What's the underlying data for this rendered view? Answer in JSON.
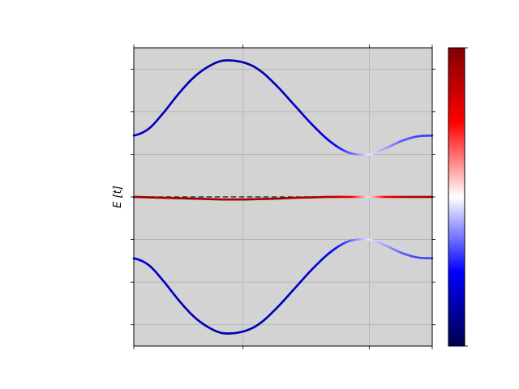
{
  "chart_data": {
    "type": "line",
    "title": "",
    "xlabel": "",
    "ylabel": "E [t]",
    "xlim": [
      0,
      1.0
    ],
    "ylim": [
      -3.5,
      3.5
    ],
    "xticks": [
      0,
      0.366,
      0.789,
      1.0
    ],
    "yticks": [
      -3,
      -2,
      -1,
      0,
      1,
      2,
      3
    ],
    "grid": true,
    "background": "#d3d3d3",
    "reference_line": {
      "y": 0.0,
      "style": "dashed",
      "color": "#333333"
    },
    "colorbar": {
      "cmap": "seismic",
      "range": [
        -1,
        1
      ],
      "colors": [
        "#00004c",
        "#0000ff",
        "#ffffff",
        "#ff0000",
        "#800000"
      ]
    },
    "series": [
      {
        "x": [
          0.0,
          0.05,
          0.1,
          0.15,
          0.2,
          0.25,
          0.3,
          0.366,
          0.42,
          0.48,
          0.54,
          0.6,
          0.66,
          0.72,
          0.789,
          0.85,
          0.9,
          0.95,
          1.0
        ],
        "y": [
          1.44,
          1.6,
          1.98,
          2.42,
          2.8,
          3.06,
          3.2,
          3.16,
          2.98,
          2.6,
          2.14,
          1.68,
          1.29,
          1.04,
          1.0,
          1.16,
          1.32,
          1.42,
          1.44
        ],
        "c": [
          -0.62,
          -0.66,
          -0.69,
          -0.71,
          -0.72,
          -0.72,
          -0.72,
          -0.72,
          -0.71,
          -0.7,
          -0.67,
          -0.63,
          -0.55,
          -0.35,
          -0.05,
          -0.2,
          -0.32,
          -0.37,
          -0.38
        ]
      },
      {
        "x": [
          0.0,
          0.05,
          0.1,
          0.15,
          0.2,
          0.25,
          0.3,
          0.366,
          0.42,
          0.48,
          0.54,
          0.6,
          0.66,
          0.72,
          0.789,
          0.85,
          0.9,
          0.95,
          1.0
        ],
        "y": [
          0.0,
          -0.01,
          -0.02,
          -0.03,
          -0.04,
          -0.05,
          -0.06,
          -0.06,
          -0.05,
          -0.04,
          -0.02,
          -0.01,
          0.0,
          0.0,
          0.0,
          0.0,
          0.0,
          0.0,
          0.0
        ],
        "c": [
          0.85,
          0.85,
          0.86,
          0.86,
          0.86,
          0.86,
          0.86,
          0.86,
          0.86,
          0.85,
          0.84,
          0.82,
          0.78,
          0.6,
          0.05,
          0.55,
          0.75,
          0.82,
          0.85
        ]
      },
      {
        "x": [
          0.0,
          0.05,
          0.1,
          0.15,
          0.2,
          0.25,
          0.3,
          0.366,
          0.42,
          0.48,
          0.54,
          0.6,
          0.66,
          0.72,
          0.789,
          0.85,
          0.9,
          0.95,
          1.0
        ],
        "y": [
          -1.44,
          -1.6,
          -1.98,
          -2.42,
          -2.8,
          -3.06,
          -3.2,
          -3.16,
          -2.98,
          -2.6,
          -2.14,
          -1.68,
          -1.29,
          -1.04,
          -1.0,
          -1.16,
          -1.32,
          -1.42,
          -1.44
        ],
        "c": [
          -0.6,
          -0.64,
          -0.67,
          -0.69,
          -0.7,
          -0.71,
          -0.71,
          -0.71,
          -0.7,
          -0.69,
          -0.66,
          -0.62,
          -0.54,
          -0.34,
          -0.05,
          -0.2,
          -0.32,
          -0.36,
          -0.37
        ]
      }
    ]
  }
}
